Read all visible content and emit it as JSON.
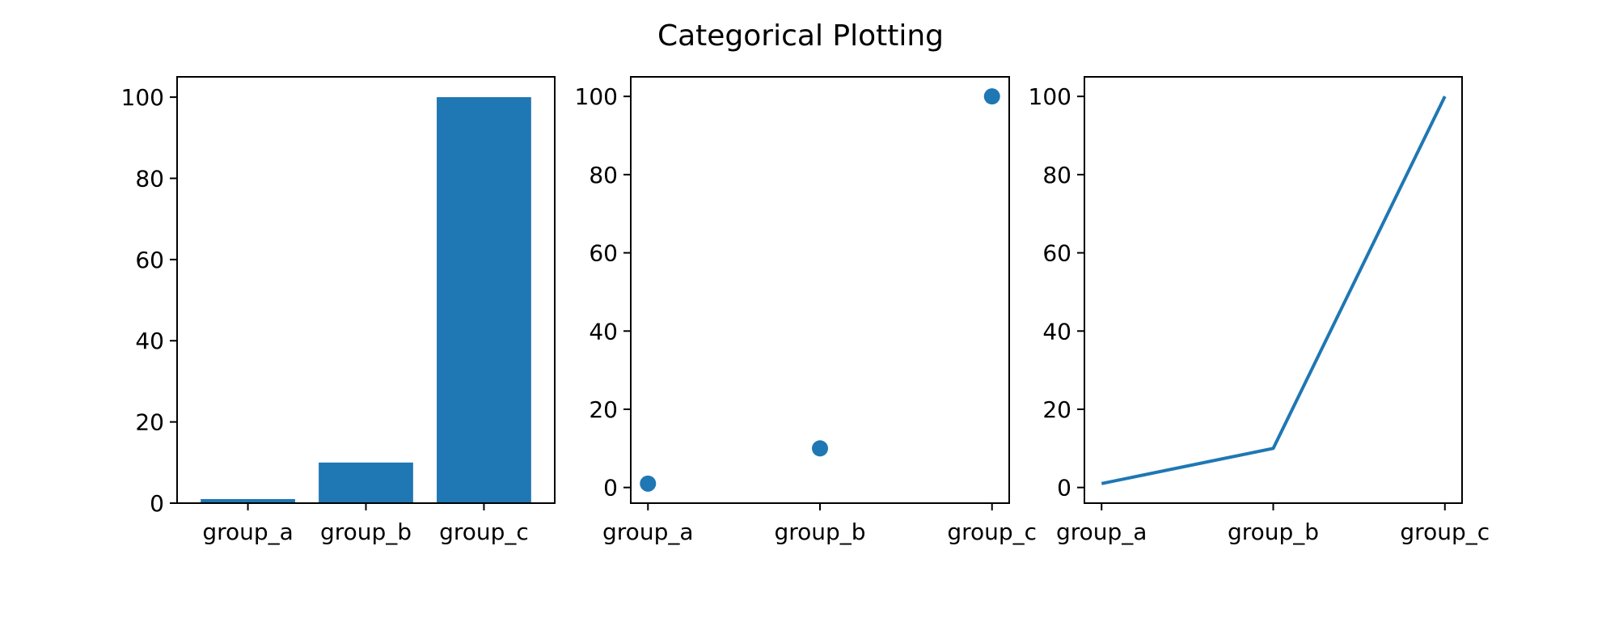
{
  "figure": {
    "title": "Categorical Plotting"
  },
  "chart_data": [
    {
      "type": "bar",
      "categories": [
        "group_a",
        "group_b",
        "group_c"
      ],
      "values": [
        1,
        10,
        100
      ],
      "ylim": [
        0,
        105
      ],
      "yticks": [
        0,
        20,
        40,
        60,
        80,
        100
      ],
      "color": "#1f77b4"
    },
    {
      "type": "scatter",
      "categories": [
        "group_a",
        "group_b",
        "group_c"
      ],
      "values": [
        1,
        10,
        100
      ],
      "ylim": [
        -4,
        105
      ],
      "yticks": [
        0,
        20,
        40,
        60,
        80,
        100
      ],
      "color": "#1f77b4"
    },
    {
      "type": "line",
      "categories": [
        "group_a",
        "group_b",
        "group_c"
      ],
      "values": [
        1,
        10,
        100
      ],
      "ylim": [
        -4,
        105
      ],
      "yticks": [
        0,
        20,
        40,
        60,
        80,
        100
      ],
      "color": "#1f77b4"
    }
  ]
}
